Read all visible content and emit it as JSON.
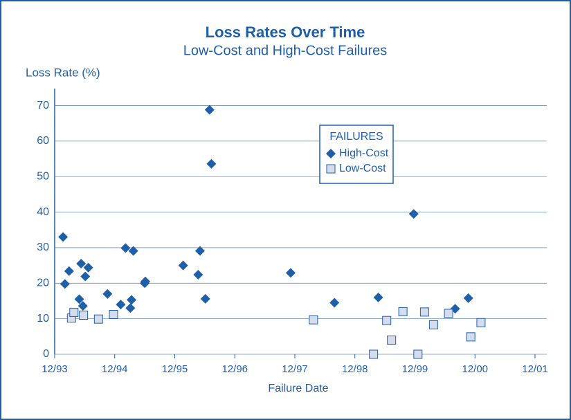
{
  "chart_data": {
    "type": "scatter",
    "title": "Loss Rates Over Time",
    "subtitle": "Low-Cost and High-Cost Failures",
    "y_label": "Loss Rate (%)",
    "x_label": "Failure Date",
    "legend": {
      "title": "FAILURES",
      "position": "top-center"
    },
    "grid": true,
    "xlim": [
      1994,
      2002
    ],
    "xticks": [
      {
        "value": 1994,
        "label": "12/93"
      },
      {
        "value": 1995,
        "label": "12/94"
      },
      {
        "value": 1996,
        "label": "12/95"
      },
      {
        "value": 1997,
        "label": "12/96"
      },
      {
        "value": 1998,
        "label": "12/97"
      },
      {
        "value": 1999,
        "label": "12/98"
      },
      {
        "value": 2000,
        "label": "12/99"
      },
      {
        "value": 2001,
        "label": "12/00"
      },
      {
        "value": 2002,
        "label": "12/01"
      }
    ],
    "ylim": [
      0,
      74
    ],
    "yticks": [
      0,
      10,
      20,
      30,
      40,
      50,
      60,
      70
    ],
    "series": [
      {
        "name": "High-Cost",
        "color": "#1f5fa8",
        "marker": "diamond",
        "x": [
          1994.14,
          1994.17,
          1994.24,
          1994.41,
          1994.44,
          1994.47,
          1994.51,
          1994.56,
          1994.88,
          1995.1,
          1995.18,
          1995.26,
          1995.28,
          1995.31,
          1995.51,
          1995.5,
          1996.14,
          1996.39,
          1996.42,
          1996.51,
          1996.58,
          1996.61,
          1997.93,
          1998.66,
          1999.39,
          1999.98,
          2000.67,
          2000.89
        ],
        "values": [
          33,
          19.8,
          23.4,
          15.5,
          25.5,
          13.6,
          21.9,
          24.4,
          17,
          14,
          29.9,
          13,
          15.3,
          29.1,
          20.5,
          20,
          25,
          22.4,
          29.1,
          15.6,
          68.8,
          53.6,
          22.9,
          14.5,
          16,
          39.5,
          12.8,
          15.8
        ]
      },
      {
        "name": "Low-Cost",
        "color": "#d5dcec",
        "stroke": "#1f5fa8",
        "marker": "square",
        "x": [
          1994.28,
          1994.32,
          1994.48,
          1994.73,
          1994.98,
          1998.31,
          1999.31,
          1999.53,
          1999.61,
          1999.8,
          2000.05,
          2000.16,
          2000.31,
          2000.56,
          2000.93,
          2001.1
        ],
        "values": [
          10.2,
          11.8,
          11,
          9.9,
          11.2,
          9.7,
          0,
          9.5,
          4,
          12,
          0,
          11.9,
          8.3,
          11.5,
          4.9,
          8.9
        ]
      }
    ]
  }
}
